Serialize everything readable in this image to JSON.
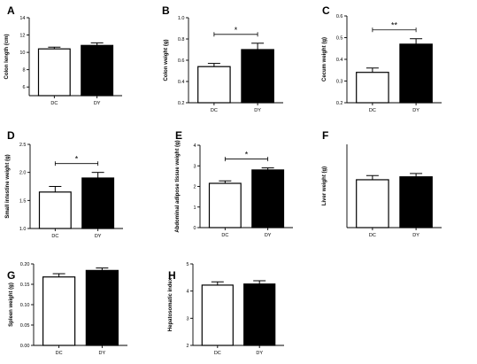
{
  "chart_data": [
    {
      "type": "bar",
      "letter": "A",
      "ylabel": "Colon length (cm)",
      "categories": [
        "DC",
        "DY"
      ],
      "values": [
        10.4,
        10.8
      ],
      "errors": [
        0.2,
        0.3
      ],
      "colors": [
        "#ffffff",
        "#000000"
      ],
      "ylim": [
        5,
        14
      ],
      "yticks": [
        "6",
        "8",
        "10",
        "12",
        "14"
      ],
      "significance": null
    },
    {
      "type": "bar",
      "letter": "B",
      "ylabel": "Colon weight (g)",
      "categories": [
        "DC",
        "DY"
      ],
      "values": [
        0.54,
        0.7
      ],
      "errors": [
        0.03,
        0.06
      ],
      "colors": [
        "#ffffff",
        "#000000"
      ],
      "ylim": [
        0.2,
        1.0
      ],
      "yticks": [
        "0.2",
        "0.4",
        "0.6",
        "0.8",
        "1.0"
      ],
      "significance": "*"
    },
    {
      "type": "bar",
      "letter": "C",
      "ylabel": "Cecum weight (g)",
      "categories": [
        "DC",
        "DY"
      ],
      "values": [
        0.34,
        0.47
      ],
      "errors": [
        0.02,
        0.025
      ],
      "colors": [
        "#ffffff",
        "#000000"
      ],
      "ylim": [
        0.2,
        0.6
      ],
      "yticks": [
        "0.2",
        "0.3",
        "0.4",
        "0.5",
        "0.6"
      ],
      "significance": "**"
    },
    {
      "type": "bar",
      "letter": "D",
      "ylabel": "Small intestine weight (g)",
      "categories": [
        "DC",
        "DY"
      ],
      "values": [
        1.65,
        1.9
      ],
      "errors": [
        0.1,
        0.1
      ],
      "colors": [
        "#ffffff",
        "#000000"
      ],
      "ylim": [
        1.0,
        2.5
      ],
      "yticks": [
        "1.0",
        "1.5",
        "2.0",
        "2.5"
      ],
      "significance": "*"
    },
    {
      "type": "bar",
      "letter": "E",
      "ylabel": "Abdominal adipose tissue weight (g)",
      "categories": [
        "DC",
        "DY"
      ],
      "values": [
        2.15,
        2.8
      ],
      "errors": [
        0.12,
        0.1
      ],
      "colors": [
        "#ffffff",
        "#000000"
      ],
      "ylim": [
        0,
        4
      ],
      "yticks": [
        "0",
        "1",
        "2",
        "3",
        "4"
      ],
      "significance": "*"
    },
    {
      "type": "bar",
      "letter": "F",
      "ylabel": "Liver weight (g)",
      "categories": [
        "DC",
        "DY"
      ],
      "values": [
        2.15,
        2.22
      ],
      "errors": [
        0.1,
        0.08
      ],
      "colors": [
        "#ffffff",
        "#000000"
      ],
      "ylim": [
        1.0,
        3.0
      ],
      "yticks": [],
      "significance": null
    },
    {
      "type": "bar",
      "letter": "G",
      "ylabel": "Spleen weight (g)",
      "categories": [
        "DC",
        "DY"
      ],
      "values": [
        0.168,
        0.184
      ],
      "errors": [
        0.008,
        0.006
      ],
      "colors": [
        "#ffffff",
        "#000000"
      ],
      "ylim": [
        0,
        0.2
      ],
      "yticks": [
        "0.00",
        "0.05",
        "0.10",
        "0.15",
        "0.20"
      ],
      "significance": null
    },
    {
      "type": "bar",
      "letter": "H",
      "ylabel": "Hepatosomatic index",
      "categories": [
        "DC",
        "DY"
      ],
      "values": [
        4.22,
        4.26
      ],
      "errors": [
        0.12,
        0.12
      ],
      "colors": [
        "#ffffff",
        "#000000"
      ],
      "ylim": [
        2,
        5
      ],
      "yticks": [
        "2",
        "3",
        "4",
        "5"
      ],
      "significance": null
    }
  ]
}
